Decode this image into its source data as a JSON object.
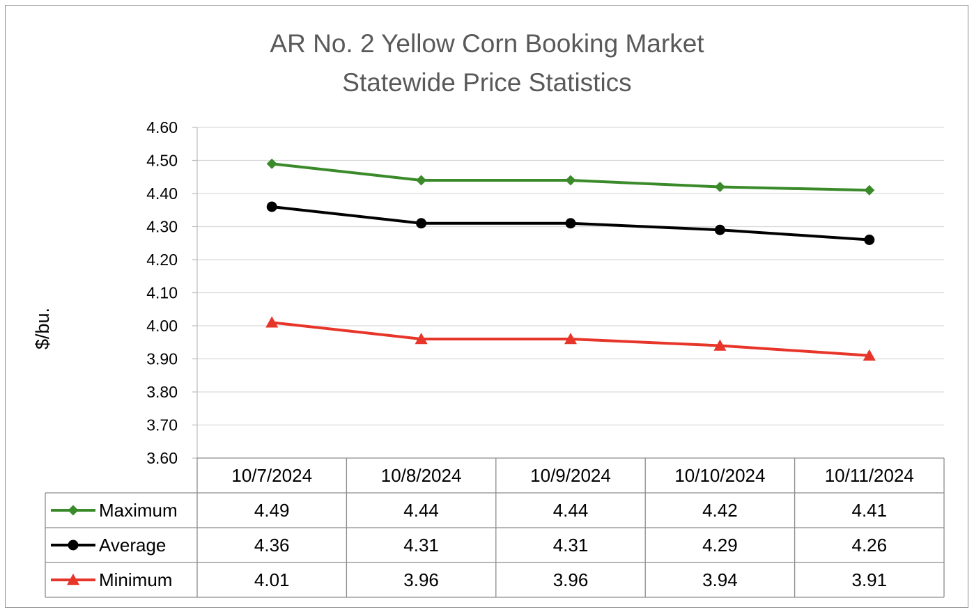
{
  "chart_data": {
    "type": "line",
    "title": "AR No. 2 Yellow Corn Booking Market",
    "subtitle": "Statewide Price Statistics",
    "ylabel": "$/bu.",
    "xlabel": "",
    "categories": [
      "10/7/2024",
      "10/8/2024",
      "10/9/2024",
      "10/10/2024",
      "10/11/2024"
    ],
    "ylim": [
      3.6,
      4.6
    ],
    "yticks": [
      "4.60",
      "4.50",
      "4.40",
      "4.30",
      "4.20",
      "4.10",
      "4.00",
      "3.90",
      "3.80",
      "3.70",
      "3.60"
    ],
    "grid": true,
    "legend_placement": "data table below plot",
    "series": [
      {
        "name": "Maximum",
        "values": [
          4.49,
          4.44,
          4.44,
          4.42,
          4.41
        ],
        "labels": [
          "4.49",
          "4.44",
          "4.44",
          "4.42",
          "4.41"
        ],
        "color": "#3a8a2a",
        "marker": "diamond"
      },
      {
        "name": "Average",
        "values": [
          4.36,
          4.31,
          4.31,
          4.29,
          4.26
        ],
        "labels": [
          "4.36",
          "4.31",
          "4.31",
          "4.29",
          "4.26"
        ],
        "color": "#000000",
        "marker": "circle"
      },
      {
        "name": "Minimum",
        "values": [
          4.01,
          3.96,
          3.96,
          3.94,
          3.91
        ],
        "labels": [
          "4.01",
          "3.96",
          "3.96",
          "3.94",
          "3.91"
        ],
        "color": "#e8352a",
        "marker": "triangle"
      }
    ]
  }
}
